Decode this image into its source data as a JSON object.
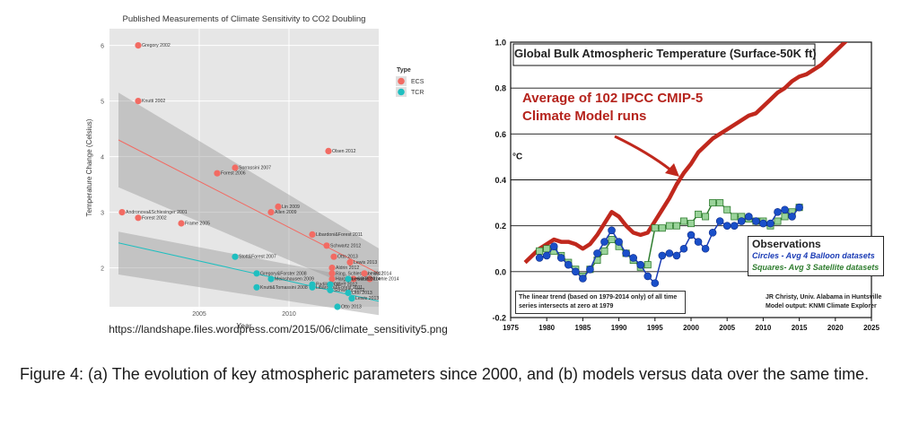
{
  "caption": "Figure 4:  (a) The evolution of key atmospheric parameters since 2000, and (b) models versus data over the same time.",
  "source_url": "https://landshape.files.wordpress.com/2015/06/climate_sensitivity5.png",
  "colors": {
    "ecs": "#f26b63",
    "tcr": "#1fbfc0",
    "model": "#c0281d",
    "balloon": "#1a4fc9",
    "satellite": "#9ad39a",
    "panel_bg": "#e6e6e6"
  },
  "chart_data": [
    {
      "type": "scatter",
      "title": "Published Measurements of Climate Sensitivity to CO2 Doubling",
      "xlabel": "Year",
      "ylabel": "Temperature Change (Celsius)",
      "xlim": [
        2000,
        2015
      ],
      "ylim": [
        1.3,
        6.3
      ],
      "xticks": [
        2005,
        2010
      ],
      "yticks": [
        2,
        3,
        4,
        5,
        6
      ],
      "legend": {
        "title": "Type",
        "position": "top-right",
        "entries": [
          "ECS",
          "TCR"
        ]
      },
      "series": [
        {
          "name": "ECS",
          "points": [
            {
              "label": "Gregory 2002",
              "x": 2001.6,
              "y": 6.0
            },
            {
              "label": "Knutti 2002",
              "x": 2001.6,
              "y": 5.0
            },
            {
              "label": "Andronova&Schlesinger 2001",
              "x": 2000.7,
              "y": 3.0
            },
            {
              "label": "Forest 2002",
              "x": 2001.6,
              "y": 2.9
            },
            {
              "label": "Frame 2005",
              "x": 2004.0,
              "y": 2.8
            },
            {
              "label": "Forest 2006",
              "x": 2006.0,
              "y": 3.7
            },
            {
              "label": "Sorrassini 2007",
              "x": 2007.0,
              "y": 3.8
            },
            {
              "label": "Allen 2009",
              "x": 2009.0,
              "y": 3.0
            },
            {
              "label": "Lin 2009",
              "x": 2009.4,
              "y": 3.1
            },
            {
              "label": "Olsen 2012",
              "x": 2012.2,
              "y": 4.1
            },
            {
              "label": "Libardoni&Forest 2011",
              "x": 2011.3,
              "y": 2.6
            },
            {
              "label": "Schwartz 2012",
              "x": 2012.1,
              "y": 2.4
            },
            {
              "label": "Otto 2013",
              "x": 2012.5,
              "y": 2.2
            },
            {
              "label": "Lewis 2013",
              "x": 2013.4,
              "y": 2.1
            },
            {
              "label": "Aldrin 2012",
              "x": 2012.4,
              "y": 2.0
            },
            {
              "label": "Ring, Schlesinger 2012",
              "x": 2012.4,
              "y": 1.9
            },
            {
              "label": "Lewis 2014",
              "x": 2014.2,
              "y": 1.9
            },
            {
              "label": "Loehle 2014",
              "x": 2014.5,
              "y": 1.8
            },
            {
              "label": "Skeie 2014",
              "x": 2013.6,
              "y": 1.8
            },
            {
              "label": "Hargreaves 2012",
              "x": 2012.4,
              "y": 1.8
            }
          ]
        },
        {
          "name": "TCR",
          "points": [
            {
              "label": "Stott&Forest 2007",
              "x": 2007.0,
              "y": 2.2
            },
            {
              "label": "Gregory&Forster 2008",
              "x": 2008.2,
              "y": 1.9
            },
            {
              "label": "Meinshausen 2009",
              "x": 2009.0,
              "y": 1.8
            },
            {
              "label": "Knutti&Tomassini 2008",
              "x": 2008.2,
              "y": 1.65
            },
            {
              "label": "Padilla 2011",
              "x": 2011.3,
              "y": 1.7
            },
            {
              "label": "Libardoni&Forest 2011",
              "x": 2011.3,
              "y": 1.65
            },
            {
              "label": "Gillett 2012",
              "x": 2012.3,
              "y": 1.7
            },
            {
              "label": "Otto 2013",
              "x": 2012.7,
              "y": 1.3
            },
            {
              "label": "Schwartz 2012",
              "x": 2012.3,
              "y": 1.6
            },
            {
              "label": "Lewis 2013",
              "x": 2013.3,
              "y": 1.8
            },
            {
              "label": "Otto 2013",
              "x": 2013.3,
              "y": 1.55
            },
            {
              "label": "Lewis 2013",
              "x": 2013.5,
              "y": 1.45
            }
          ]
        }
      ],
      "trend_lines": [
        {
          "series": "ECS",
          "x": [
            2000.5,
            2015
          ],
          "y": [
            4.3,
            1.9
          ]
        },
        {
          "series": "TCR",
          "x": [
            2000.5,
            2015
          ],
          "y": [
            2.45,
            1.4
          ]
        }
      ],
      "tick_labels": [
        "2005",
        "2010",
        "2",
        "3",
        "4",
        "5",
        "6"
      ]
    },
    {
      "type": "line",
      "title": "Global Bulk Atmospheric Temperature (Surface-50K ft)",
      "ylabel": "°C",
      "xlim": [
        1975,
        2025
      ],
      "ylim": [
        -0.2,
        1.0
      ],
      "xticks": [
        1975,
        1980,
        1985,
        1990,
        1995,
        2000,
        2005,
        2010,
        2015,
        2020,
        2025
      ],
      "yticks": [
        -0.2,
        0.0,
        0.2,
        0.4,
        0.6,
        0.8,
        1.0
      ],
      "tick_labels_x": [
        "1975",
        "1980",
        "1985",
        "1990",
        "1995",
        "2000",
        "2005",
        "2010",
        "2015",
        "2020",
        "2025"
      ],
      "tick_labels_y": [
        "-0.2",
        "0.0",
        "0.2",
        "0.4",
        "0.6",
        "0.8",
        "1.0"
      ],
      "annotation": "Average of 102 IPCC CMIP-5 Climate Model runs",
      "legend": {
        "title": "Observations",
        "circles": "Circles - Avg 4 Balloon datasets",
        "squares": "Squares- Avg 3 Satellite datasets"
      },
      "note": "The linear trend (based on 1979-2014 only) of all time series intersects at zero at 1979",
      "credit": [
        "JR Christy, Univ. Alabama in Huntsville",
        "Model output: KNMI Climate Explorer"
      ],
      "series": [
        {
          "name": "Average of 102 IPCC CMIP-5 Climate Model runs",
          "x": [
            1977,
            1978,
            1979,
            1980,
            1981,
            1982,
            1983,
            1984,
            1985,
            1986,
            1987,
            1988,
            1989,
            1990,
            1991,
            1992,
            1993,
            1994,
            1995,
            1996,
            1997,
            1998,
            1999,
            2000,
            2001,
            2002,
            2003,
            2004,
            2005,
            2006,
            2007,
            2008,
            2009,
            2010,
            2011,
            2012,
            2013,
            2014,
            2015,
            2016,
            2017,
            2018,
            2019,
            2020,
            2021,
            2022,
            2023
          ],
          "y": [
            0.04,
            0.07,
            0.1,
            0.12,
            0.14,
            0.13,
            0.13,
            0.12,
            0.1,
            0.12,
            0.16,
            0.21,
            0.26,
            0.24,
            0.2,
            0.17,
            0.16,
            0.17,
            0.22,
            0.27,
            0.32,
            0.38,
            0.43,
            0.47,
            0.52,
            0.55,
            0.58,
            0.6,
            0.62,
            0.64,
            0.66,
            0.68,
            0.69,
            0.72,
            0.75,
            0.78,
            0.8,
            0.83,
            0.85,
            0.86,
            0.88,
            0.9,
            0.93,
            0.96,
            0.99,
            1.02,
            1.04
          ]
        },
        {
          "name": "Circles - Avg 4 Balloon datasets",
          "x": [
            1979,
            1980,
            1981,
            1982,
            1983,
            1984,
            1985,
            1986,
            1987,
            1988,
            1989,
            1990,
            1991,
            1992,
            1993,
            1994,
            1995,
            1996,
            1997,
            1998,
            1999,
            2000,
            2001,
            2002,
            2003,
            2004,
            2005,
            2006,
            2007,
            2008,
            2009,
            2010,
            2011,
            2012,
            2013,
            2014,
            2015
          ],
          "y": [
            0.06,
            0.07,
            0.11,
            0.06,
            0.03,
            0.0,
            -0.03,
            0.01,
            0.08,
            0.13,
            0.18,
            0.13,
            0.08,
            0.06,
            0.03,
            -0.02,
            -0.05,
            0.07,
            0.08,
            0.07,
            0.1,
            0.16,
            0.13,
            0.1,
            0.17,
            0.22,
            0.2,
            0.2,
            0.22,
            0.24,
            0.22,
            0.21,
            0.21,
            0.26,
            0.27,
            0.24,
            0.28
          ]
        },
        {
          "name": "Squares- Avg 3 Satellite datasets",
          "x": [
            1979,
            1980,
            1981,
            1982,
            1983,
            1984,
            1985,
            1986,
            1987,
            1988,
            1989,
            1990,
            1991,
            1992,
            1993,
            1994,
            1995,
            1996,
            1997,
            1998,
            1999,
            2000,
            2001,
            2002,
            2003,
            2004,
            2005,
            2006,
            2007,
            2008,
            2009,
            2010,
            2011,
            2012,
            2013,
            2014,
            2015
          ],
          "y": [
            0.09,
            0.1,
            0.09,
            0.07,
            0.04,
            0.01,
            -0.02,
            0.01,
            0.05,
            0.09,
            0.14,
            0.11,
            0.08,
            0.05,
            0.02,
            0.03,
            0.19,
            0.19,
            0.2,
            0.2,
            0.22,
            0.21,
            0.25,
            0.24,
            0.3,
            0.3,
            0.27,
            0.24,
            0.24,
            0.23,
            0.22,
            0.22,
            0.2,
            0.22,
            0.24,
            0.26,
            0.28
          ]
        }
      ]
    }
  ]
}
